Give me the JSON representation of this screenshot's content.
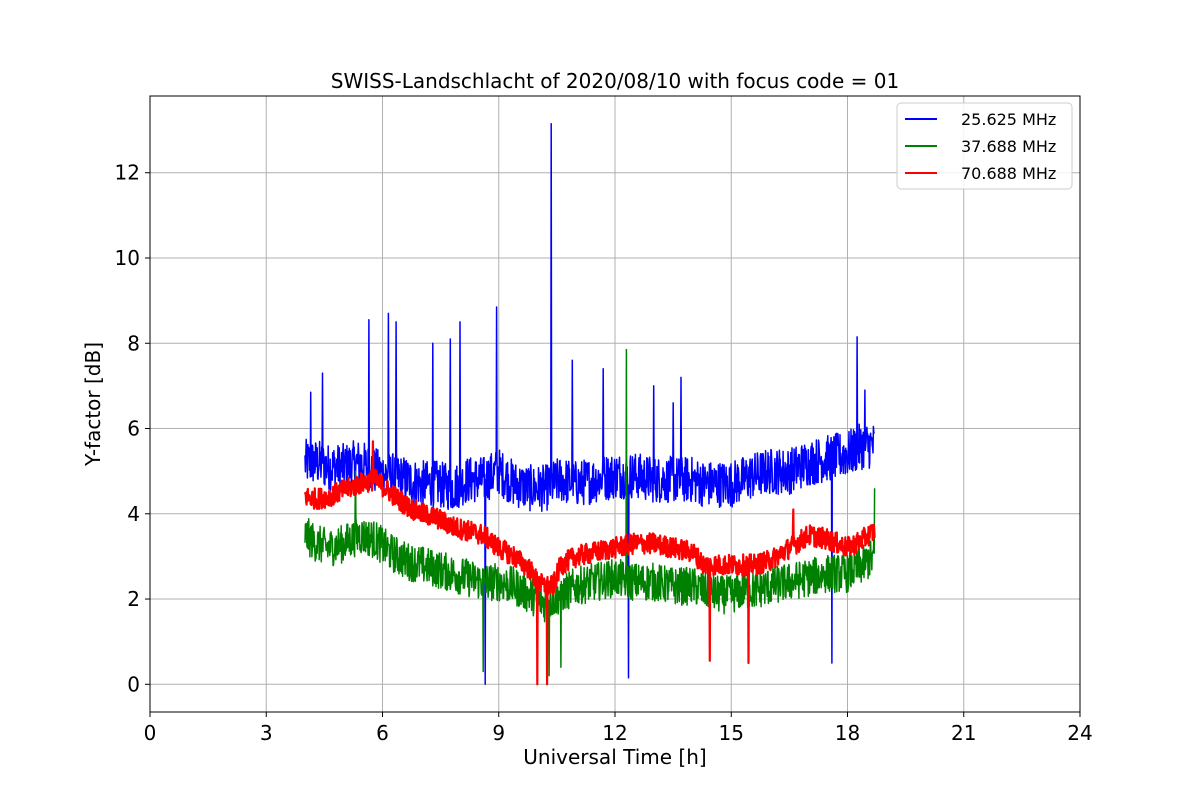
{
  "chart_data": {
    "type": "line",
    "title": "SWISS-Landschlacht of 2020/08/10 with focus code = 01",
    "xlabel": "Universal Time [h]",
    "ylabel": "Y-factor [dB]",
    "xlim": [
      0,
      24
    ],
    "ylim": [
      -0.65,
      13.8
    ],
    "xticks": [
      0,
      3,
      6,
      9,
      12,
      15,
      18,
      21,
      24
    ],
    "yticks": [
      0,
      2,
      4,
      6,
      8,
      10,
      12
    ],
    "grid": true,
    "legend_position": "top-right",
    "series": [
      {
        "name": "25.625 MHz",
        "color": "#0000ff",
        "x": [
          4.0,
          4.3,
          4.6,
          5.0,
          5.4,
          5.8,
          6.2,
          6.6,
          7.0,
          7.4,
          7.8,
          8.2,
          8.6,
          9.0,
          9.4,
          9.8,
          10.2,
          10.6,
          11.0,
          11.5,
          12.0,
          12.5,
          13.0,
          13.5,
          14.0,
          14.3,
          14.7,
          15.0,
          15.3,
          15.6,
          16.0,
          16.5,
          17.0,
          17.5,
          18.0,
          18.4,
          18.7
        ],
        "y": [
          5.2,
          5.2,
          5.1,
          5.1,
          5.2,
          5.0,
          4.9,
          4.8,
          4.7,
          4.7,
          4.6,
          4.8,
          4.8,
          5.0,
          4.7,
          4.6,
          4.6,
          4.8,
          4.7,
          4.8,
          4.9,
          4.9,
          4.8,
          4.8,
          4.8,
          4.7,
          4.7,
          4.7,
          4.8,
          4.9,
          5.0,
          5.0,
          5.2,
          5.3,
          5.4,
          5.6,
          5.6
        ],
        "spikes": [
          {
            "x": 4.15,
            "y": 6.85
          },
          {
            "x": 4.45,
            "y": 7.3
          },
          {
            "x": 5.65,
            "y": 8.55
          },
          {
            "x": 6.15,
            "y": 8.7
          },
          {
            "x": 6.35,
            "y": 8.5
          },
          {
            "x": 7.3,
            "y": 8.0
          },
          {
            "x": 7.75,
            "y": 8.1
          },
          {
            "x": 8.0,
            "y": 8.5
          },
          {
            "x": 8.95,
            "y": 8.85
          },
          {
            "x": 10.35,
            "y": 13.15
          },
          {
            "x": 10.9,
            "y": 7.6
          },
          {
            "x": 11.7,
            "y": 7.4
          },
          {
            "x": 12.35,
            "y": 7.6
          },
          {
            "x": 13.0,
            "y": 7.0
          },
          {
            "x": 13.5,
            "y": 6.6
          },
          {
            "x": 13.7,
            "y": 7.2
          },
          {
            "x": 18.25,
            "y": 8.15
          },
          {
            "x": 18.45,
            "y": 6.9
          },
          {
            "x": 8.65,
            "y": 0.0
          },
          {
            "x": 12.35,
            "y": 0.15
          },
          {
            "x": 17.6,
            "y": 0.5
          }
        ]
      },
      {
        "name": "37.688 MHz",
        "color": "#008000",
        "x": [
          4.0,
          4.3,
          4.6,
          5.0,
          5.4,
          5.8,
          6.2,
          6.6,
          7.0,
          7.4,
          7.8,
          8.2,
          8.6,
          9.0,
          9.4,
          9.8,
          10.2,
          10.6,
          11.0,
          11.5,
          12.0,
          12.5,
          13.0,
          13.5,
          14.0,
          14.3,
          14.7,
          15.0,
          15.3,
          15.6,
          16.0,
          16.5,
          17.0,
          17.5,
          18.0,
          18.4,
          18.7
        ],
        "y": [
          3.5,
          3.3,
          3.2,
          3.3,
          3.5,
          3.4,
          3.1,
          2.9,
          2.8,
          2.7,
          2.6,
          2.5,
          2.4,
          2.4,
          2.3,
          2.1,
          1.9,
          2.1,
          2.3,
          2.4,
          2.5,
          2.4,
          2.4,
          2.3,
          2.3,
          2.2,
          2.1,
          2.1,
          2.2,
          2.2,
          2.3,
          2.4,
          2.5,
          2.6,
          2.6,
          2.8,
          3.0
        ],
        "spikes": [
          {
            "x": 12.3,
            "y": 7.85
          },
          {
            "x": 5.3,
            "y": 5.0
          },
          {
            "x": 18.7,
            "y": 4.6
          },
          {
            "x": 8.6,
            "y": 0.3
          },
          {
            "x": 10.3,
            "y": 0.2
          },
          {
            "x": 10.6,
            "y": 0.4
          }
        ]
      },
      {
        "name": "70.688 MHz",
        "color": "#ff0000",
        "x": [
          4.0,
          4.3,
          4.6,
          5.0,
          5.4,
          5.8,
          6.2,
          6.6,
          7.0,
          7.4,
          7.8,
          8.2,
          8.6,
          9.0,
          9.4,
          9.8,
          10.0,
          10.2,
          10.4,
          10.6,
          11.0,
          11.5,
          12.0,
          12.5,
          13.0,
          13.5,
          14.0,
          14.3,
          14.7,
          15.0,
          15.3,
          15.6,
          16.0,
          16.5,
          17.0,
          17.5,
          18.0,
          18.4,
          18.7
        ],
        "y": [
          4.4,
          4.35,
          4.4,
          4.55,
          4.7,
          4.8,
          4.5,
          4.2,
          4.0,
          3.9,
          3.7,
          3.6,
          3.5,
          3.2,
          3.0,
          2.7,
          2.4,
          2.3,
          2.3,
          2.8,
          3.0,
          3.1,
          3.2,
          3.3,
          3.3,
          3.2,
          3.1,
          2.8,
          2.8,
          2.8,
          2.8,
          2.8,
          2.9,
          3.2,
          3.5,
          3.4,
          3.2,
          3.4,
          3.6
        ],
        "spikes": [
          {
            "x": 5.75,
            "y": 5.7
          },
          {
            "x": 16.6,
            "y": 4.1
          },
          {
            "x": 10.0,
            "y": 0.0
          },
          {
            "x": 10.25,
            "y": 0.0
          },
          {
            "x": 14.45,
            "y": 0.55
          },
          {
            "x": 15.45,
            "y": 0.5
          }
        ]
      }
    ]
  }
}
